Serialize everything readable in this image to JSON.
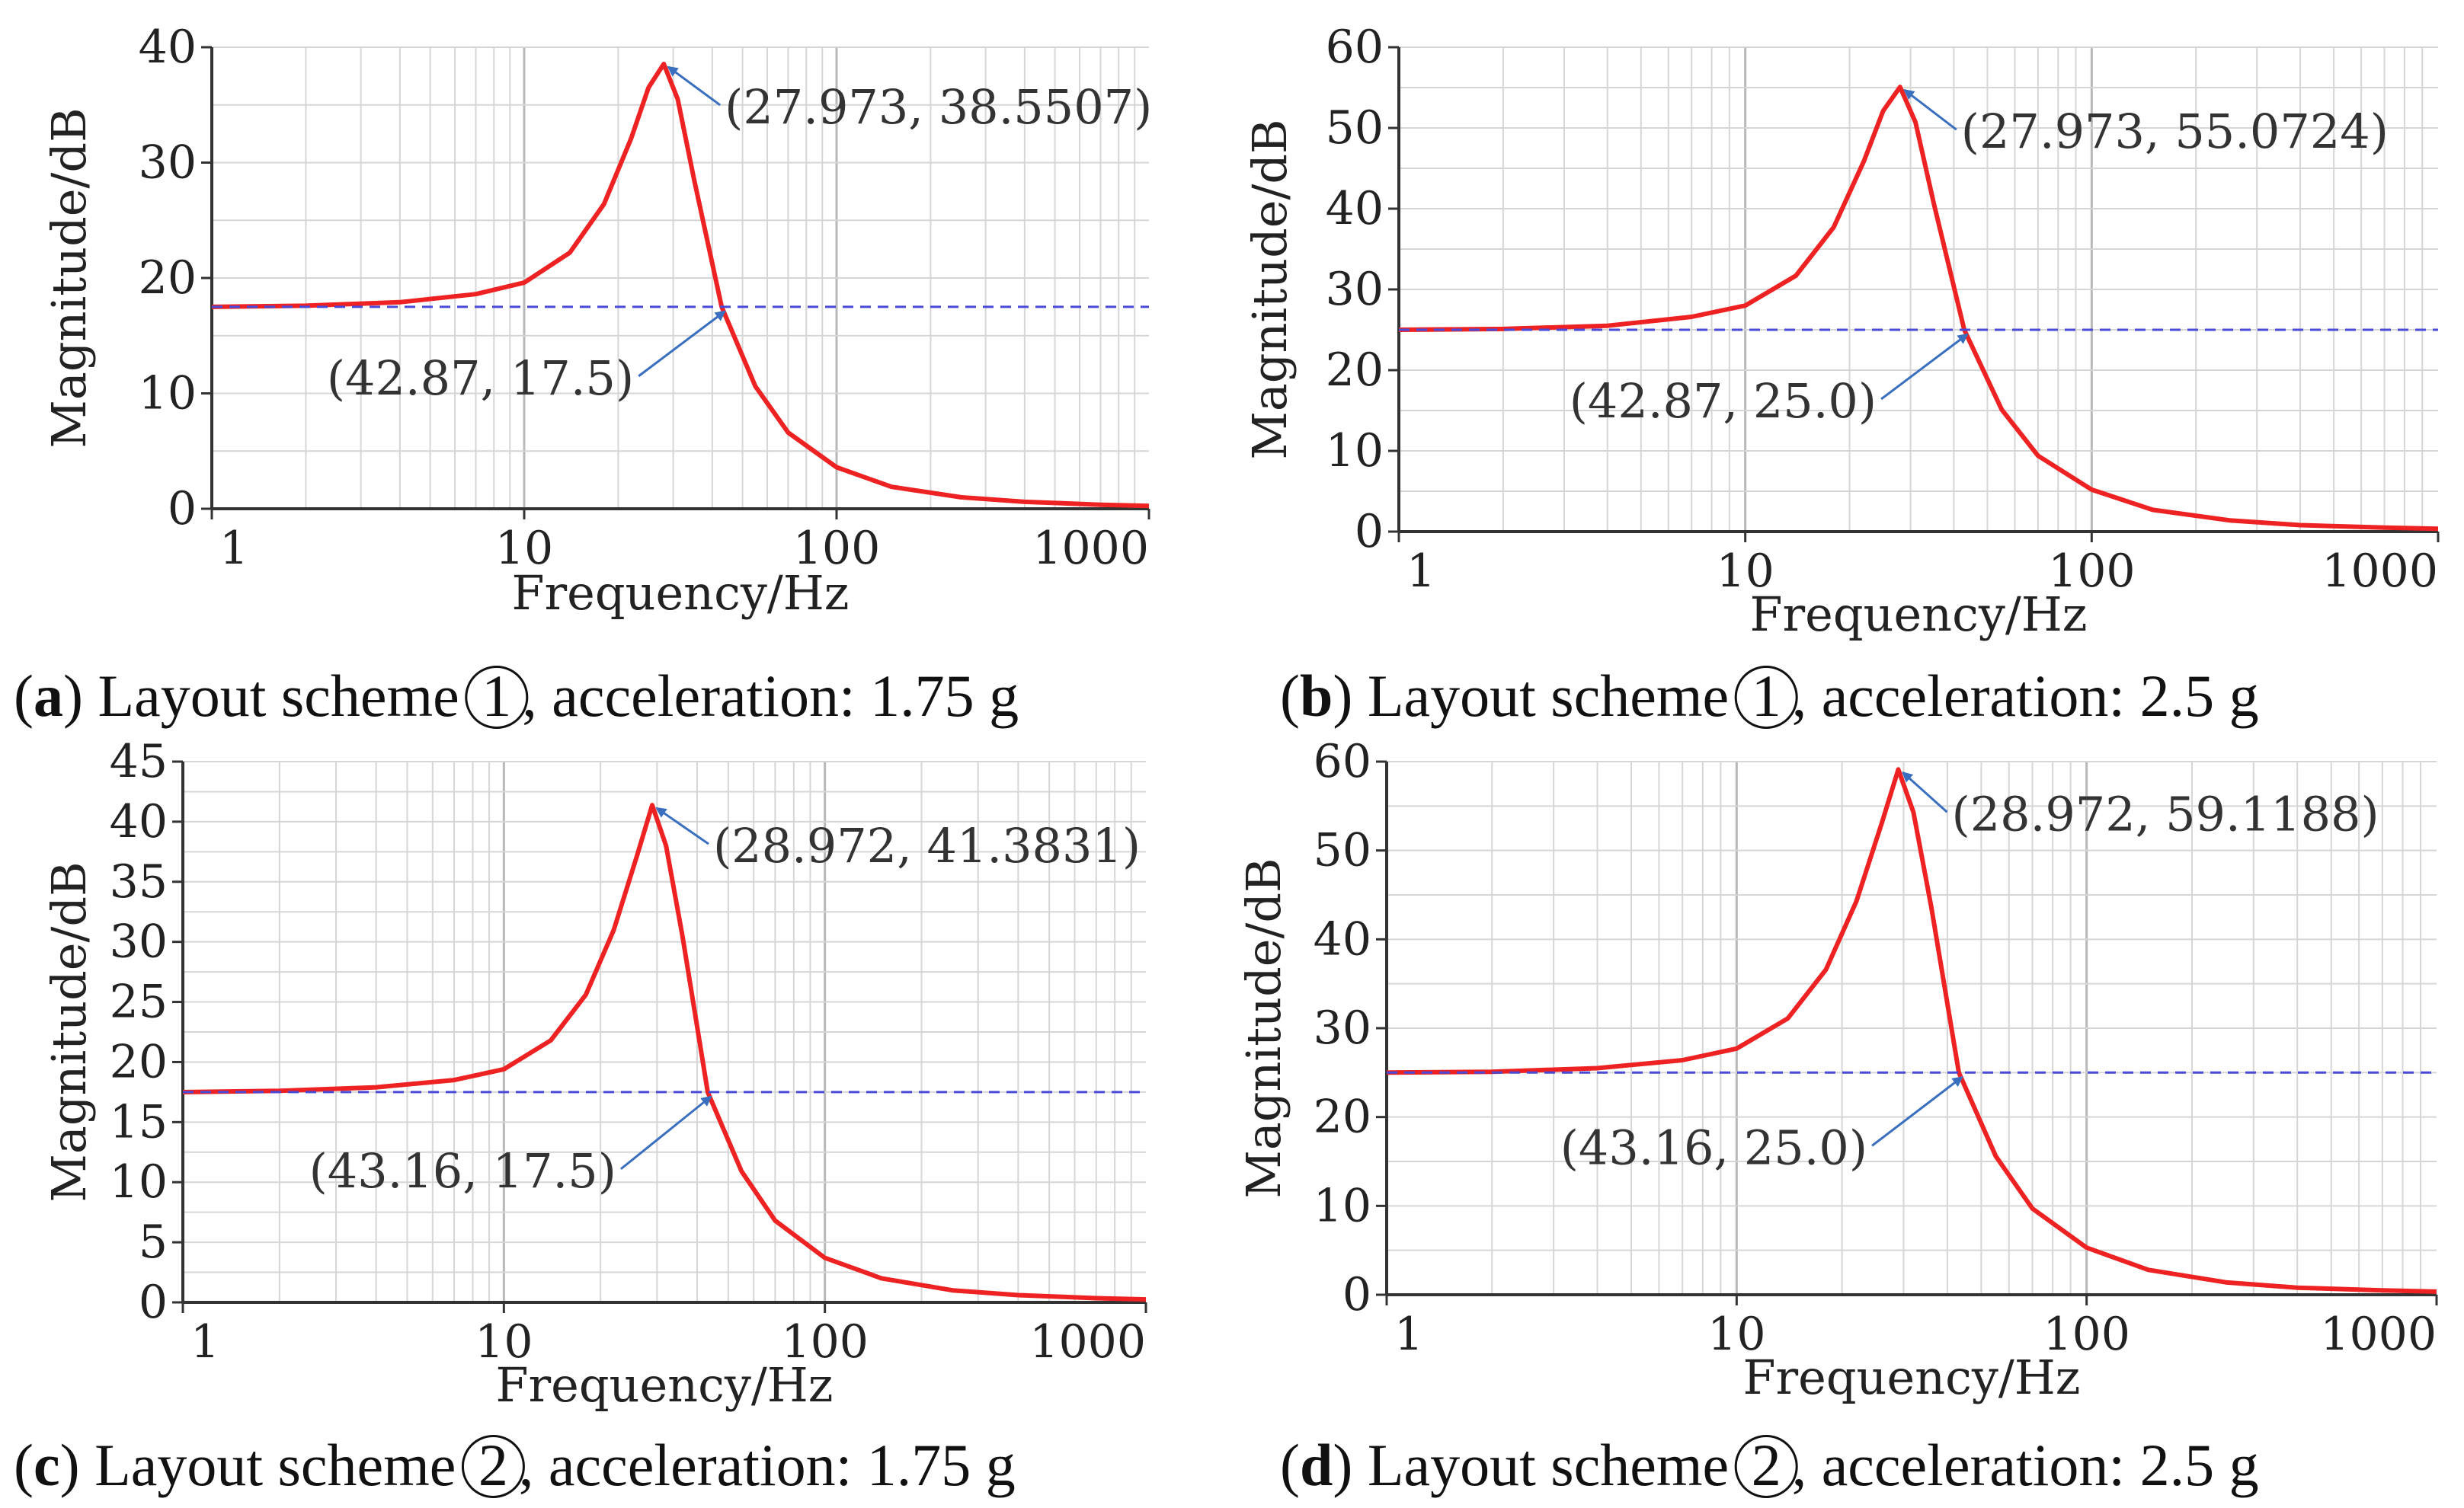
{
  "chart_data": [
    {
      "type": "line",
      "panel_letter": "a",
      "caption": {
        "scheme_prefix": "Layout scheme",
        "scheme_num": "1",
        "suffix": ", acceleration: 1.75 g"
      },
      "xlabel": "Frequency/Hz",
      "ylabel": "Magnitude/dB",
      "xscale": "log",
      "xlim": [
        1,
        1000
      ],
      "ylim": [
        0,
        40
      ],
      "xticks": [
        1,
        10,
        100,
        1000
      ],
      "yticks": [
        0,
        10,
        20,
        30,
        40
      ],
      "grid": true,
      "series": [
        {
          "name": "magnitude",
          "color": "#ee2222",
          "style": "solid",
          "x": [
            1,
            2,
            4,
            7,
            10,
            14,
            18,
            22,
            25,
            27.973,
            31,
            35,
            42.87,
            55,
            70,
            100,
            150,
            250,
            400,
            700,
            1000
          ],
          "y": [
            17.5,
            17.6,
            17.9,
            18.6,
            19.6,
            22.2,
            26.4,
            32.1,
            36.5,
            38.5507,
            35.5,
            28.5,
            17.5,
            10.6,
            6.6,
            3.6,
            1.9,
            1.0,
            0.6,
            0.35,
            0.25
          ]
        },
        {
          "name": "reference",
          "color": "#4a4ad8",
          "style": "dashed",
          "x": [
            1,
            1000
          ],
          "y": [
            17.5,
            17.5
          ]
        }
      ],
      "annotations": [
        {
          "text": "(27.973,   38.5507)",
          "x": 27.973,
          "y": 38.5507
        },
        {
          "text": "(42.87,   17.5)",
          "x": 42.87,
          "y": 17.5
        }
      ]
    },
    {
      "type": "line",
      "panel_letter": "b",
      "caption": {
        "scheme_prefix": "Layout scheme",
        "scheme_num": "1",
        "suffix": ", acceleration: 2.5 g"
      },
      "xlabel": "Frequency/Hz",
      "ylabel": "Magnitude/dB",
      "xscale": "log",
      "xlim": [
        1,
        1000
      ],
      "ylim": [
        0,
        60
      ],
      "xticks": [
        1,
        10,
        100,
        1000
      ],
      "yticks": [
        0,
        10,
        20,
        30,
        40,
        50,
        60
      ],
      "grid": true,
      "series": [
        {
          "name": "magnitude",
          "color": "#ee2222",
          "style": "solid",
          "x": [
            1,
            2,
            4,
            7,
            10,
            14,
            18,
            22,
            25,
            27.973,
            31,
            35,
            42.87,
            55,
            70,
            100,
            150,
            250,
            400,
            700,
            1000
          ],
          "y": [
            25.0,
            25.1,
            25.5,
            26.6,
            28.0,
            31.7,
            37.7,
            45.9,
            52.1,
            55.0724,
            50.7,
            40.7,
            25.0,
            15.1,
            9.4,
            5.2,
            2.7,
            1.4,
            0.8,
            0.5,
            0.35
          ]
        },
        {
          "name": "reference",
          "color": "#4a4ad8",
          "style": "dashed",
          "x": [
            1,
            1000
          ],
          "y": [
            25.0,
            25.0
          ]
        }
      ],
      "annotations": [
        {
          "text": "(27.973,   55.0724)",
          "x": 27.973,
          "y": 55.0724
        },
        {
          "text": "(42.87,   25.0)",
          "x": 42.87,
          "y": 25.0
        }
      ]
    },
    {
      "type": "line",
      "panel_letter": "c",
      "caption": {
        "scheme_prefix": "Layout scheme",
        "scheme_num": "2",
        "suffix": ", acceleration: 1.75 g"
      },
      "xlabel": "Frequency/Hz",
      "ylabel": "Magnitude/dB",
      "xscale": "log",
      "xlim": [
        1,
        1000
      ],
      "ylim": [
        0,
        45
      ],
      "xticks": [
        1,
        10,
        100,
        1000
      ],
      "yticks": [
        0,
        5,
        10,
        15,
        20,
        25,
        30,
        35,
        40,
        45
      ],
      "grid": true,
      "series": [
        {
          "name": "magnitude",
          "color": "#ee2222",
          "style": "solid",
          "x": [
            1,
            2,
            4,
            7,
            10,
            14,
            18,
            22,
            26,
            28.972,
            32,
            36,
            43.16,
            55,
            70,
            100,
            150,
            250,
            400,
            700,
            1000
          ],
          "y": [
            17.5,
            17.6,
            17.9,
            18.5,
            19.4,
            21.8,
            25.6,
            31.0,
            37.2,
            41.3831,
            38.0,
            30.5,
            17.5,
            10.9,
            6.8,
            3.7,
            2.0,
            1.0,
            0.6,
            0.35,
            0.25
          ]
        },
        {
          "name": "reference",
          "color": "#4a4ad8",
          "style": "dashed",
          "x": [
            1,
            1000
          ],
          "y": [
            17.5,
            17.5
          ]
        }
      ],
      "annotations": [
        {
          "text": "(28.972,   41.3831)",
          "x": 28.972,
          "y": 41.3831
        },
        {
          "text": "(43.16,   17.5)",
          "x": 43.16,
          "y": 17.5
        }
      ]
    },
    {
      "type": "line",
      "panel_letter": "d",
      "caption": {
        "scheme_prefix": "Layout scheme",
        "scheme_num": "2",
        "suffix": ", acceleration: 2.5 g"
      },
      "xlabel": "Frequency/Hz",
      "ylabel": "Magnitude/dB",
      "xscale": "log",
      "xlim": [
        1,
        1000
      ],
      "ylim": [
        0,
        60
      ],
      "xticks": [
        1,
        10,
        100,
        1000
      ],
      "yticks": [
        0,
        10,
        20,
        30,
        40,
        50,
        60
      ],
      "grid": true,
      "series": [
        {
          "name": "magnitude",
          "color": "#ee2222",
          "style": "solid",
          "x": [
            1,
            2,
            4,
            7,
            10,
            14,
            18,
            22,
            26,
            28.972,
            32,
            36,
            43.16,
            55,
            70,
            100,
            150,
            250,
            400,
            700,
            1000
          ],
          "y": [
            25.0,
            25.1,
            25.5,
            26.4,
            27.7,
            31.1,
            36.6,
            44.3,
            53.1,
            59.1188,
            54.3,
            43.6,
            25.0,
            15.6,
            9.7,
            5.3,
            2.8,
            1.4,
            0.8,
            0.5,
            0.35
          ]
        },
        {
          "name": "reference",
          "color": "#4a4ad8",
          "style": "dashed",
          "x": [
            1,
            1000
          ],
          "y": [
            25.0,
            25.0
          ]
        }
      ],
      "annotations": [
        {
          "text": "(28.972,   59.1188)",
          "x": 28.972,
          "y": 59.1188
        },
        {
          "text": "(43.16,   25.0)",
          "x": 43.16,
          "y": 25.0
        }
      ]
    }
  ]
}
